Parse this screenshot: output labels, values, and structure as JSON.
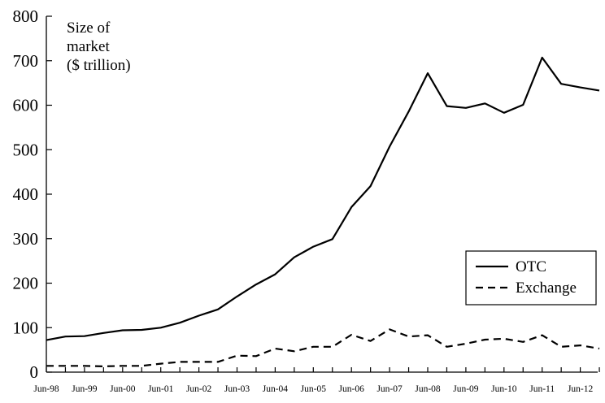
{
  "chart_data": {
    "type": "line",
    "ylabel_lines": [
      "Size of",
      "market",
      "($ trillion)"
    ],
    "ylim": [
      0,
      800
    ],
    "yticks": [
      0,
      100,
      200,
      300,
      400,
      500,
      600,
      700,
      800
    ],
    "xlim": [
      0,
      29
    ],
    "xtick_labels": [
      "Jun-98",
      "Jun-99",
      "Jun-00",
      "Jun-01",
      "Jun-02",
      "Jun-03",
      "Jun-04",
      "Jun-05",
      "Jun-06",
      "Jun-07",
      "Jun-08",
      "Jun-09",
      "Jun-10",
      "Jun-11",
      "Jun-12"
    ],
    "x_unit_note": "half-years from Jun-98",
    "legend_position": "bottom-right",
    "grid": false,
    "series": [
      {
        "name": "OTC",
        "style": "solid",
        "x": [
          0,
          1,
          2,
          3,
          4,
          5,
          6,
          7,
          8,
          9,
          10,
          11,
          12,
          13,
          14,
          15,
          16,
          17,
          18,
          19,
          20,
          21,
          22,
          23,
          24,
          25,
          26,
          27,
          28,
          29
        ],
        "values": [
          72,
          80,
          81,
          88,
          94,
          95,
          100,
          111,
          127,
          141,
          170,
          197,
          220,
          258,
          282,
          299,
          371,
          418,
          507,
          586,
          672,
          598,
          594,
          604,
          583,
          601,
          707,
          648,
          640,
          633
        ]
      },
      {
        "name": "Exchange",
        "style": "dashed",
        "x": [
          0,
          1,
          2,
          3,
          4,
          5,
          6,
          7,
          8,
          9,
          10,
          11,
          12,
          13,
          14,
          15,
          16,
          17,
          18,
          19,
          20,
          21,
          22,
          23,
          24,
          25,
          26,
          27,
          28,
          29
        ],
        "values": [
          14,
          14,
          14,
          13,
          14,
          14,
          19,
          23,
          23,
          23,
          37,
          36,
          53,
          47,
          57,
          57,
          84,
          70,
          96,
          80,
          83,
          57,
          64,
          73,
          75,
          68,
          83,
          57,
          60,
          53
        ]
      }
    ]
  }
}
